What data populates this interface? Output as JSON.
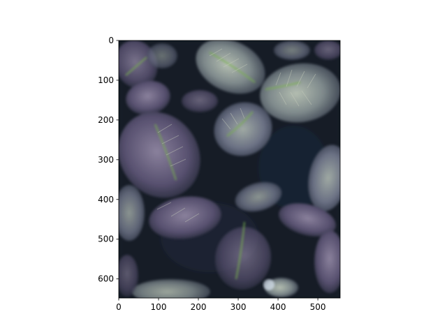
{
  "chart_data": {
    "type": "heatmap",
    "title": "",
    "xlabel": "",
    "ylabel": "",
    "image_width": 556,
    "image_height": 648,
    "xlim": [
      0,
      556
    ],
    "ylim": [
      648,
      0
    ],
    "x_ticks": [
      0,
      100,
      200,
      300,
      400,
      500
    ],
    "y_ticks": [
      0,
      100,
      200,
      300,
      400,
      500,
      600
    ],
    "grid": false,
    "legend": "none",
    "content": "plant-leaves-image",
    "colors": {
      "background": "#0d1420",
      "leaf_dark": "#4a4a6a",
      "leaf_light": "#9aa6a8",
      "vein": "#b8c4b0",
      "green_midrib": "#6aa84f",
      "purple_tint": "#6a5a80"
    }
  }
}
